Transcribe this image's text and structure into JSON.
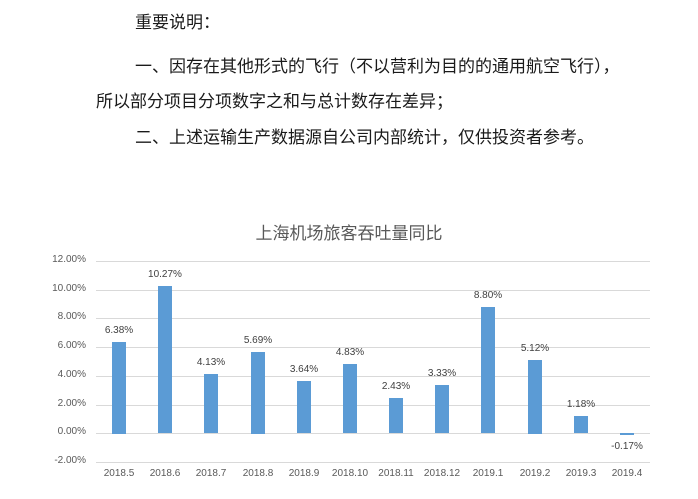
{
  "notes": {
    "heading": "重要说明：",
    "line1": "一、因存在其他形式的飞行（不以营利为目的的通用航空飞行），",
    "line2": "所以部分项目分项数字之和与总计数存在差异；",
    "line3": "二、上述运输生产数据源自公司内部统计，仅供投资者参考。"
  },
  "chart_data": {
    "type": "bar",
    "title": "上海机场旅客吞吐量同比",
    "xlabel": "",
    "ylabel": "",
    "categories": [
      "2018.5",
      "2018.6",
      "2018.7",
      "2018.8",
      "2018.9",
      "2018.10",
      "2018.11",
      "2018.12",
      "2019.1",
      "2019.2",
      "2019.3",
      "2019.4"
    ],
    "values": [
      6.38,
      10.27,
      4.13,
      5.69,
      3.64,
      4.83,
      2.43,
      3.33,
      8.8,
      5.12,
      1.18,
      -0.17
    ],
    "value_labels": [
      "6.38%",
      "10.27%",
      "4.13%",
      "5.69%",
      "3.64%",
      "4.83%",
      "2.43%",
      "3.33%",
      "8.80%",
      "5.12%",
      "1.18%",
      "-0.17%"
    ],
    "ylim": [
      -2,
      12
    ],
    "yticks": [
      "12.00%",
      "10.00%",
      "8.00%",
      "6.00%",
      "4.00%",
      "2.00%",
      "0.00%",
      "-2.00%"
    ],
    "grid": true,
    "legend": "none",
    "bar_color": "#5b9bd5"
  }
}
